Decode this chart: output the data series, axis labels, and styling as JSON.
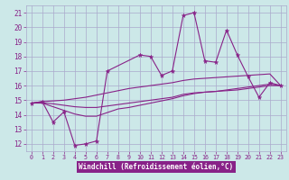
{
  "background_color": "#cce8e8",
  "grid_color": "#aaaacc",
  "line_color": "#882288",
  "xlabel": "Windchill (Refroidissement éolien,°C)",
  "xlabel_bg": "#882288",
  "xlabel_fg": "#ffffff",
  "xlim": [
    -0.5,
    23.5
  ],
  "ylim": [
    11.5,
    21.5
  ],
  "xticks": [
    0,
    1,
    2,
    3,
    4,
    5,
    6,
    7,
    8,
    9,
    10,
    11,
    12,
    13,
    14,
    15,
    16,
    17,
    18,
    19,
    20,
    21,
    22,
    23
  ],
  "yticks": [
    12,
    13,
    14,
    15,
    16,
    17,
    18,
    19,
    20,
    21
  ],
  "series": [
    {
      "x": [
        0,
        1,
        2,
        3,
        4,
        5,
        6,
        7,
        10,
        11,
        12,
        13,
        14,
        15,
        16,
        17,
        18,
        19,
        20,
        21,
        22,
        23
      ],
      "y": [
        14.8,
        14.9,
        13.5,
        14.2,
        11.9,
        12.0,
        12.2,
        17.0,
        18.1,
        18.0,
        16.7,
        17.0,
        20.8,
        21.0,
        17.7,
        17.6,
        19.8,
        18.1,
        16.6,
        15.2,
        16.2,
        16.0
      ],
      "has_markers": true
    },
    {
      "x": [
        0,
        1,
        2,
        3,
        4,
        5,
        6,
        7,
        8,
        9,
        10,
        11,
        12,
        13,
        14,
        15,
        16,
        17,
        18,
        19,
        20,
        21,
        22,
        23
      ],
      "y": [
        14.8,
        14.9,
        14.95,
        15.0,
        15.1,
        15.2,
        15.35,
        15.5,
        15.65,
        15.8,
        15.9,
        16.0,
        16.1,
        16.2,
        16.35,
        16.45,
        16.5,
        16.55,
        16.6,
        16.65,
        16.7,
        16.75,
        16.8,
        16.0
      ],
      "has_markers": false
    },
    {
      "x": [
        0,
        1,
        2,
        3,
        4,
        5,
        6,
        7,
        8,
        9,
        10,
        11,
        12,
        13,
        14,
        15,
        16,
        17,
        18,
        19,
        20,
        21,
        22,
        23
      ],
      "y": [
        14.8,
        14.8,
        14.55,
        14.3,
        14.05,
        13.9,
        13.9,
        14.15,
        14.4,
        14.5,
        14.65,
        14.8,
        14.95,
        15.1,
        15.3,
        15.45,
        15.55,
        15.6,
        15.7,
        15.8,
        15.9,
        16.0,
        16.1,
        16.0
      ],
      "has_markers": false
    },
    {
      "x": [
        0,
        1,
        2,
        3,
        4,
        5,
        6,
        7,
        8,
        9,
        10,
        11,
        12,
        13,
        14,
        15,
        16,
        17,
        18,
        19,
        20,
        21,
        22,
        23
      ],
      "y": [
        14.8,
        14.82,
        14.75,
        14.65,
        14.55,
        14.5,
        14.5,
        14.6,
        14.7,
        14.8,
        14.9,
        15.0,
        15.1,
        15.2,
        15.4,
        15.5,
        15.55,
        15.6,
        15.65,
        15.7,
        15.8,
        15.9,
        16.0,
        16.0
      ],
      "has_markers": false
    }
  ]
}
